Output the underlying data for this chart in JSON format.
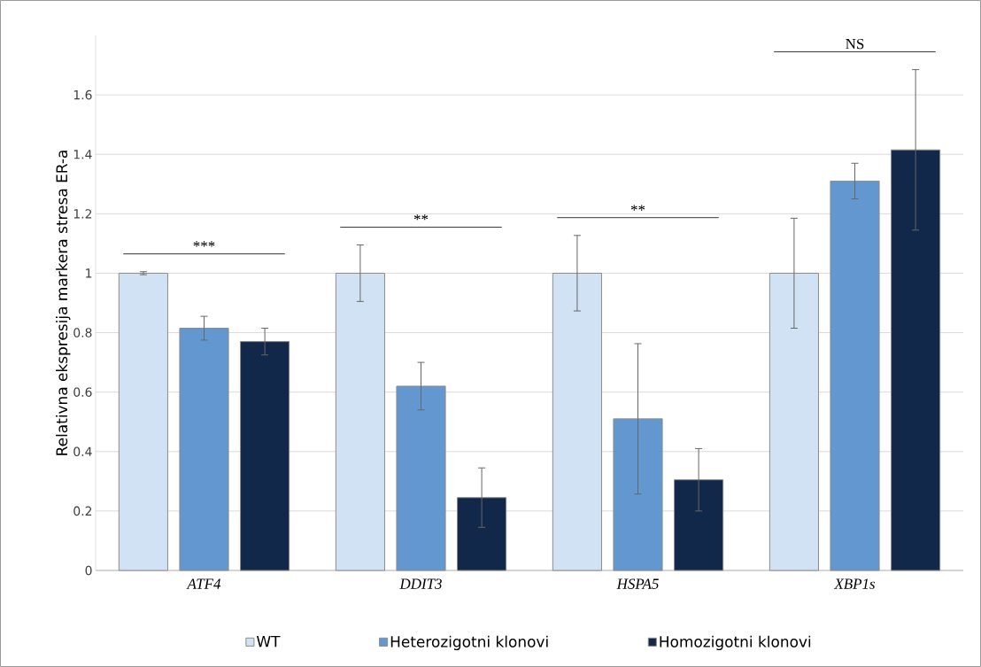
{
  "chart_data": {
    "type": "bar",
    "ylabel": "Relativna ekspresija markera stresa ER-a",
    "categories": [
      "ATF4",
      "DDIT3",
      "HSPA5",
      "XBP1s"
    ],
    "series": [
      {
        "name": "WT",
        "color": "#d0e2f3",
        "values": [
          1.0,
          1.0,
          1.0,
          1.0
        ],
        "errors": [
          0.005,
          0.095,
          0.127,
          0.185
        ]
      },
      {
        "name": "Heterozigotni klonovi",
        "color": "#6397d0",
        "values": [
          0.815,
          0.62,
          0.51,
          1.31
        ],
        "errors": [
          0.04,
          0.08,
          0.253,
          0.06
        ]
      },
      {
        "name": "Homozigotni klonovi",
        "color": "#12284a",
        "values": [
          0.77,
          0.245,
          0.305,
          1.415
        ],
        "errors": [
          0.045,
          0.1,
          0.105,
          0.27
        ]
      }
    ],
    "ylim": [
      0,
      1.8
    ],
    "yticks": [
      0,
      0.2,
      0.4,
      0.6,
      0.8,
      1,
      1.2,
      1.4,
      1.6
    ],
    "grid": "y",
    "legend": "bottom",
    "annotations": [
      "***",
      "**",
      "**",
      "NS"
    ]
  }
}
